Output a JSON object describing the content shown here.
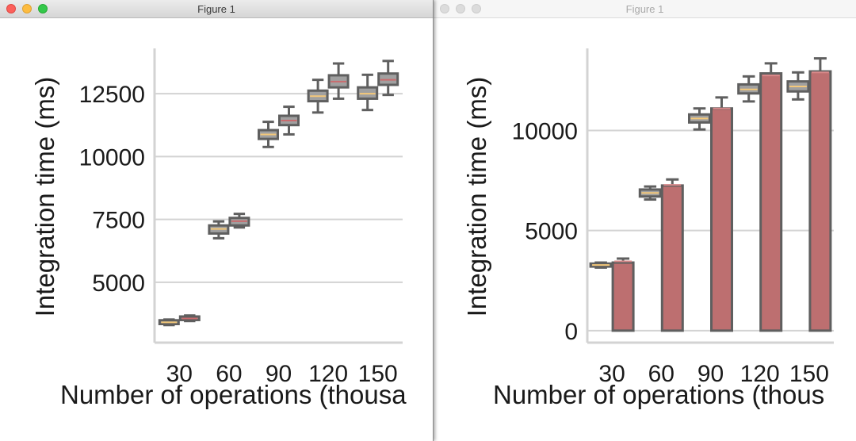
{
  "colors": {
    "box_fill": "#a0a0a0",
    "bar_fill": "#bd6f70",
    "edge": "#5f5f5f",
    "grid": "#d3d3d3",
    "median_box1": "#f4c87a",
    "median_box2": "#c96b6e",
    "median_bar": "#d9898a"
  },
  "windows": [
    {
      "title": "Figure 1",
      "active": true
    },
    {
      "title": "Figure 1",
      "active": false
    }
  ],
  "chart_data": [
    {
      "type": "box",
      "ylabel": "Integration time (ms)",
      "xlabel": "Number of operations (thousa",
      "categories": [
        "30",
        "60",
        "90",
        "120",
        "150"
      ],
      "yticks": [
        5000,
        7500,
        10000,
        12500
      ],
      "ylim": [
        2600,
        14300
      ],
      "grid": "horizontal",
      "series": [
        {
          "boxes": [
            {
              "min": 3300,
              "q1": 3340,
              "median": 3410,
              "q3": 3490,
              "max": 3520
            },
            {
              "min": 6750,
              "q1": 6940,
              "median": 7120,
              "q3": 7260,
              "max": 7420
            },
            {
              "min": 10380,
              "q1": 10700,
              "median": 10880,
              "q3": 11050,
              "max": 11380
            },
            {
              "min": 11750,
              "q1": 12200,
              "median": 12400,
              "q3": 12620,
              "max": 13050
            },
            {
              "min": 11850,
              "q1": 12300,
              "median": 12500,
              "q3": 12750,
              "max": 13250
            }
          ]
        },
        {
          "boxes": [
            {
              "min": 3460,
              "q1": 3500,
              "median": 3560,
              "q3": 3640,
              "max": 3680
            },
            {
              "min": 7180,
              "q1": 7260,
              "median": 7430,
              "q3": 7560,
              "max": 7720
            },
            {
              "min": 10880,
              "q1": 11250,
              "median": 11430,
              "q3": 11620,
              "max": 11980
            },
            {
              "min": 12300,
              "q1": 12750,
              "median": 12980,
              "q3": 13230,
              "max": 13700
            },
            {
              "min": 12450,
              "q1": 12850,
              "median": 13050,
              "q3": 13300,
              "max": 13800
            }
          ]
        }
      ]
    },
    {
      "type": "box+bar",
      "ylabel": "Integration time (ms)",
      "xlabel": "Number of operations (thous",
      "categories": [
        "30",
        "60",
        "90",
        "120",
        "150"
      ],
      "yticks": [
        0,
        5000,
        10000
      ],
      "ylim": [
        -600,
        14100
      ],
      "grid": "horizontal",
      "boxes": [
        {
          "min": 3150,
          "q1": 3200,
          "median": 3280,
          "q3": 3350,
          "max": 3400
        },
        {
          "min": 6550,
          "q1": 6700,
          "median": 6880,
          "q3": 7050,
          "max": 7200
        },
        {
          "min": 10050,
          "q1": 10400,
          "median": 10600,
          "q3": 10800,
          "max": 11100
        },
        {
          "min": 11450,
          "q1": 11850,
          "median": 12050,
          "q3": 12300,
          "max": 12700
        },
        {
          "min": 11550,
          "q1": 11950,
          "median": 12200,
          "q3": 12450,
          "max": 12900
        }
      ],
      "bars": [
        3400,
        7250,
        11100,
        12850,
        12950
      ],
      "bar_caps": [
        {
          "median": 3460,
          "max": 3600
        },
        {
          "median": 7280,
          "max": 7550
        },
        {
          "median": 11100,
          "max": 11650
        },
        {
          "median": 12750,
          "max": 13350
        },
        {
          "median": 12900,
          "max": 13600
        }
      ]
    }
  ]
}
